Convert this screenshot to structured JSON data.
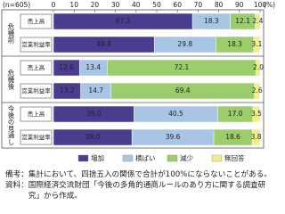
{
  "chart_data": {
    "type": "stacked-barh",
    "note": "(n=605)",
    "unit": "(%)",
    "groups": [
      "危機前",
      "危機後",
      "今後の見通し"
    ],
    "categories": [
      "売上高",
      "営業利益率",
      "売上高",
      "営業利益率",
      "売上高",
      "営業利益率"
    ],
    "series": [
      {
        "name": "増加",
        "color": "#4a3d8f",
        "values": [
          67.3,
          48.8,
          12.6,
          13.2,
          39.0,
          38.0
        ],
        "value_labels": [
          "67.3",
          "48.8",
          "12.6",
          "13.2",
          "39.0",
          "38.0"
        ]
      },
      {
        "name": "横ばい",
        "color": "#a8c5e6",
        "values": [
          18.3,
          29.8,
          13.4,
          14.7,
          40.5,
          39.6
        ],
        "value_labels": [
          "18.3",
          "29.8",
          "13.4",
          "14.7",
          "40.5",
          "39.6"
        ]
      },
      {
        "name": "減少",
        "color": "#9ccd6c",
        "values": [
          12.1,
          18.3,
          72.1,
          69.4,
          17.0,
          18.6
        ],
        "value_labels": [
          "12.1",
          "18.3",
          "72.1",
          "69.4",
          "17.0",
          "18.6"
        ]
      },
      {
        "name": "無回答",
        "color": "#f2ee8c",
        "values": [
          2.4,
          3.1,
          2.0,
          2.6,
          3.5,
          3.8
        ],
        "value_labels": [
          "2.4",
          "3.1",
          "2.0",
          "2.6",
          "3.5",
          "3.8"
        ]
      }
    ],
    "xlim": [
      0,
      100
    ],
    "xticks": [
      0,
      10,
      20,
      30,
      40,
      50,
      60,
      70,
      80,
      90,
      100
    ],
    "legend": "bottom"
  },
  "notes": [
    {
      "label": "備考：",
      "text": "集計において、四捨五入の関係で合計が100%にならないことがある。"
    },
    {
      "label": "資料：",
      "text": "国際経済交流財団「今後の多角的通商ルールのあり方に関する調査研究」から作成。"
    }
  ]
}
